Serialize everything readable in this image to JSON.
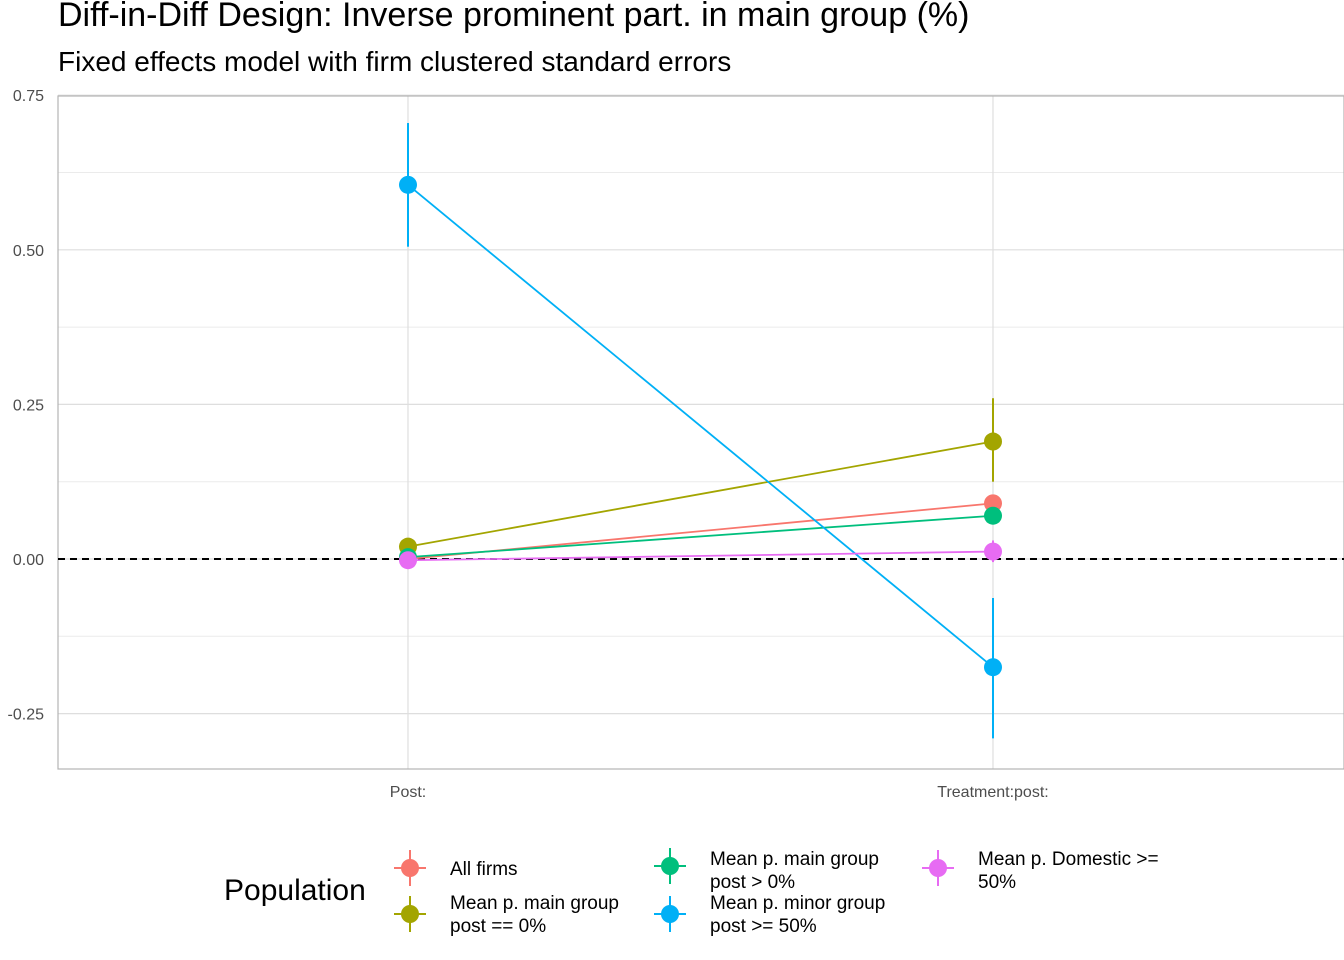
{
  "title": "Diff-in-Diff Design: Inverse prominent part. in main group (%)",
  "subtitle": "Fixed effects model with firm clustered standard errors",
  "chart_data": {
    "type": "line",
    "categories": [
      "Post:",
      "Treatment:post:"
    ],
    "ylim": [
      -0.33,
      0.75
    ],
    "yticks": [
      0.75,
      0.5,
      0.25,
      0.0,
      -0.25
    ],
    "ytick_labels": [
      "0.75",
      "0.50",
      "0.25",
      "0.00",
      "-0.25"
    ],
    "reference_line": 0,
    "grid": true,
    "legend_title": "Population",
    "legend_position": "bottom",
    "series": [
      {
        "name": "All firms",
        "color": "#F8766D",
        "values": [
          0.0,
          0.09
        ],
        "ci_low": [
          0.0,
          0.08
        ],
        "ci_high": [
          0.0,
          0.1
        ]
      },
      {
        "name": "Mean p. main group\npost == 0%",
        "color": "#A3A500",
        "values": [
          0.02,
          0.19
        ],
        "ci_low": [
          0.015,
          0.125
        ],
        "ci_high": [
          0.025,
          0.26
        ]
      },
      {
        "name": "Mean p. main group\npost > 0%",
        "color": "#00BF7D",
        "values": [
          0.003,
          0.07
        ],
        "ci_low": [
          0.0,
          0.06
        ],
        "ci_high": [
          0.006,
          0.08
        ]
      },
      {
        "name": "Mean p. minor group\npost >= 50%",
        "color": "#00B0F6",
        "values": [
          0.605,
          -0.175
        ],
        "ci_low": [
          0.505,
          -0.29
        ],
        "ci_high": [
          0.705,
          -0.063
        ]
      },
      {
        "name": "Mean p. Domestic >=\n50%",
        "color": "#E76BF3",
        "values": [
          -0.002,
          0.012
        ],
        "ci_low": [
          -0.008,
          -0.005
        ],
        "ci_high": [
          0.004,
          0.03
        ]
      }
    ]
  }
}
